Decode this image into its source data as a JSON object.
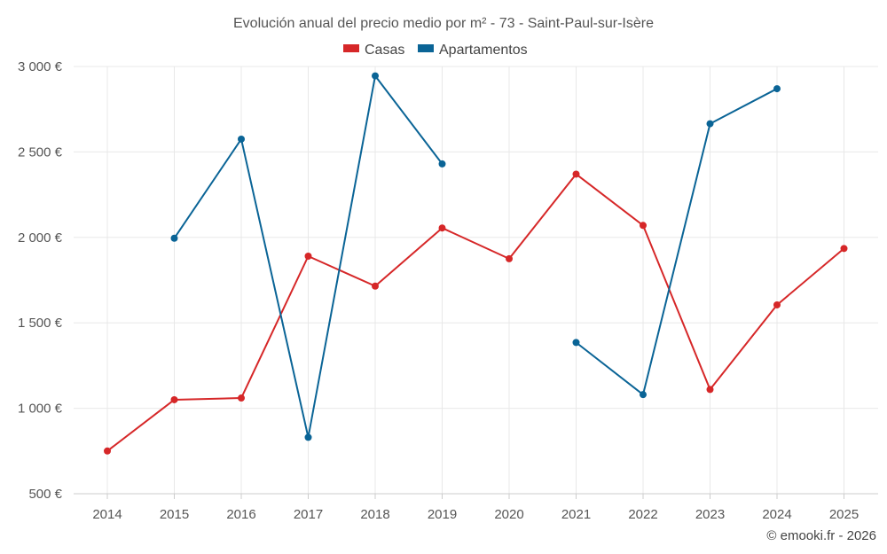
{
  "chart_data": {
    "type": "line",
    "title": "Evolución anual del precio medio por m² - 73 - Saint-Paul-sur-Isère",
    "xlabel": "",
    "ylabel": "",
    "categories": [
      "2014",
      "2015",
      "2016",
      "2017",
      "2018",
      "2019",
      "2020",
      "2021",
      "2022",
      "2023",
      "2024",
      "2025"
    ],
    "ylim": [
      500,
      3000
    ],
    "yticks": [
      500,
      1000,
      1500,
      2000,
      2500,
      3000
    ],
    "ytick_labels": [
      "500 €",
      "1 000 €",
      "1 500 €",
      "2 000 €",
      "2 500 €",
      "3 000 €"
    ],
    "grid": true,
    "legend_position": "top-center",
    "series": [
      {
        "name": "Casas",
        "color": "#d62728",
        "values": [
          750,
          1050,
          1060,
          1890,
          1715,
          2055,
          1875,
          2370,
          2070,
          1110,
          1605,
          1935
        ]
      },
      {
        "name": "Apartamentos",
        "color": "#0a6496",
        "values": [
          null,
          1995,
          2575,
          830,
          2945,
          2430,
          null,
          1385,
          1080,
          2665,
          2870,
          null
        ]
      }
    ]
  },
  "credit": "© emooki.fr - 2026"
}
